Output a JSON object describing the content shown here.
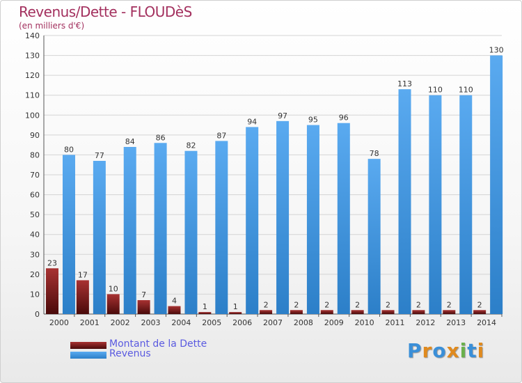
{
  "chart_data": {
    "type": "bar",
    "title": "Revenus/Dette - FLOUDèS",
    "subtitle": "(en milliers d'€)",
    "categories": [
      "2000",
      "2001",
      "2002",
      "2003",
      "2004",
      "2005",
      "2006",
      "2007",
      "2008",
      "2009",
      "2010",
      "2011",
      "2012",
      "2013",
      "2014"
    ],
    "series": [
      {
        "name": "Montant de la Dette",
        "color": "#7a1a1a",
        "values": [
          23,
          17,
          10,
          7,
          4,
          1,
          1,
          2,
          2,
          2,
          2,
          2,
          2,
          2,
          2
        ]
      },
      {
        "name": "Revenus",
        "color": "#4a9fe0",
        "values": [
          80,
          77,
          84,
          86,
          82,
          87,
          94,
          97,
          95,
          96,
          78,
          113,
          110,
          110,
          130
        ]
      }
    ],
    "ylim": [
      0,
      140
    ],
    "yticks": [
      0,
      10,
      20,
      30,
      40,
      50,
      60,
      70,
      80,
      90,
      100,
      110,
      120,
      130,
      140
    ],
    "grid": true,
    "legend_position": "bottom-left"
  },
  "logo": {
    "text": "Proxiti",
    "letters": [
      "P",
      "r",
      "o",
      "x",
      "i",
      "t",
      "i"
    ],
    "colors": [
      "#3a8fd8",
      "#e08a1e",
      "#3a8fd8",
      "#e08a1e",
      "#6ab04c",
      "#3a8fd8",
      "#e08a1e"
    ]
  }
}
